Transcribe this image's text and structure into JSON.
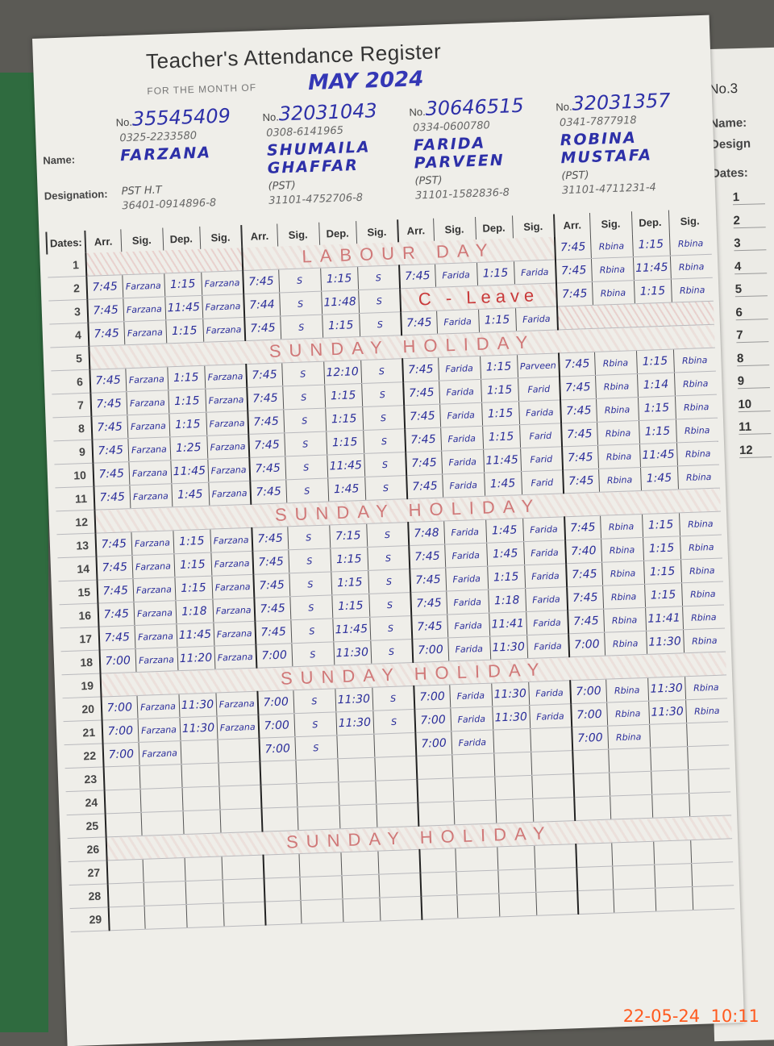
{
  "register": {
    "title": "Teacher's Attendance Register",
    "month_label": "FOR THE MONTH OF",
    "month_value": "MAY 2024",
    "labels": {
      "no": "No.",
      "name": "Name:",
      "designation": "Designation:",
      "dates": "Dates:"
    },
    "column_headers": [
      "Arr.",
      "Sig.",
      "Dep.",
      "Sig."
    ]
  },
  "teachers": [
    {
      "no": "35545409",
      "phone": "0325-2233580",
      "name": "FARZANA",
      "designation": "PST H.T",
      "cnic": "36401-0914896-8"
    },
    {
      "no": "32031043",
      "phone": "0308-6141965",
      "name": "SHUMAILA GHAFFAR",
      "designation": "(PST)",
      "cnic": "31101-4752706-8"
    },
    {
      "no": "30646515",
      "phone": "0334-0600780",
      "name": "FARIDA PARVEEN",
      "designation": "(PST)",
      "cnic": "31101-1582836-8"
    },
    {
      "no": "32031357",
      "phone": "0341-7877918",
      "name": "ROBINA MUSTAFA",
      "designation": "(PST)",
      "cnic": "31101-4711231-4"
    }
  ],
  "rows": [
    {
      "date": "1",
      "blocks": [
        {
          "note": ""
        },
        {
          "note": "LABOUR DAY"
        },
        {
          "note": "LABOUR DAY"
        },
        [
          "7:45",
          "Rbina",
          "1:15",
          "Rbina"
        ]
      ]
    },
    {
      "date": "2",
      "blocks": [
        [
          "7:45",
          "Farzana",
          "1:15",
          "Farzana"
        ],
        [
          "7:45",
          "S",
          "1:15",
          "S"
        ],
        [
          "7:45",
          "Farida",
          "1:15",
          "Farida"
        ],
        [
          "7:45",
          "Rbina",
          "11:45",
          "Rbina"
        ]
      ]
    },
    {
      "date": "3",
      "blocks": [
        [
          "7:45",
          "Farzana",
          "11:45",
          "Farzana"
        ],
        [
          "7:44",
          "S",
          "11:48",
          "S"
        ],
        {
          "note": "C - Leave"
        },
        [
          "7:45",
          "Rbina",
          "1:15",
          "Rbina"
        ]
      ]
    },
    {
      "date": "4",
      "blocks": [
        [
          "7:45",
          "Farzana",
          "1:15",
          "Farzana"
        ],
        [
          "7:45",
          "S",
          "1:15",
          "S"
        ],
        [
          "7:45",
          "Farida",
          "1:15",
          "Farida"
        ],
        {
          "note": ""
        }
      ]
    },
    {
      "date": "5",
      "holiday": "SUNDAY HOLIDAY"
    },
    {
      "date": "6",
      "blocks": [
        [
          "7:45",
          "Farzana",
          "1:15",
          "Farzana"
        ],
        [
          "7:45",
          "S",
          "12:10",
          "S"
        ],
        [
          "7:45",
          "Farida",
          "1:15",
          "Parveen"
        ],
        [
          "7:45",
          "Rbina",
          "1:15",
          "Rbina"
        ]
      ]
    },
    {
      "date": "7",
      "blocks": [
        [
          "7:45",
          "Farzana",
          "1:15",
          "Farzana"
        ],
        [
          "7:45",
          "S",
          "1:15",
          "S"
        ],
        [
          "7:45",
          "Farida",
          "1:15",
          "Farid"
        ],
        [
          "7:45",
          "Rbina",
          "1:14",
          "Rbina"
        ]
      ]
    },
    {
      "date": "8",
      "blocks": [
        [
          "7:45",
          "Farzana",
          "1:15",
          "Farzana"
        ],
        [
          "7:45",
          "S",
          "1:15",
          "S"
        ],
        [
          "7:45",
          "Farida",
          "1:15",
          "Farida"
        ],
        [
          "7:45",
          "Rbina",
          "1:15",
          "Rbina"
        ]
      ]
    },
    {
      "date": "9",
      "blocks": [
        [
          "7:45",
          "Farzana",
          "1:25",
          "Farzana"
        ],
        [
          "7:45",
          "S",
          "1:15",
          "S"
        ],
        [
          "7:45",
          "Farida",
          "1:15",
          "Farid"
        ],
        [
          "7:45",
          "Rbina",
          "1:15",
          "Rbina"
        ]
      ]
    },
    {
      "date": "10",
      "blocks": [
        [
          "7:45",
          "Farzana",
          "11:45",
          "Farzana"
        ],
        [
          "7:45",
          "S",
          "11:45",
          "S"
        ],
        [
          "7:45",
          "Farida",
          "11:45",
          "Farid"
        ],
        [
          "7:45",
          "Rbina",
          "11:45",
          "Rbina"
        ]
      ]
    },
    {
      "date": "11",
      "blocks": [
        [
          "7:45",
          "Farzana",
          "1:45",
          "Farzana"
        ],
        [
          "7:45",
          "S",
          "1:45",
          "S"
        ],
        [
          "7:45",
          "Farida",
          "1:45",
          "Farid"
        ],
        [
          "7:45",
          "Rbina",
          "1:45",
          "Rbina"
        ]
      ]
    },
    {
      "date": "12",
      "holiday": "SUNDAY HOLIDAY"
    },
    {
      "date": "13",
      "blocks": [
        [
          "7:45",
          "Farzana",
          "1:15",
          "Farzana"
        ],
        [
          "7:45",
          "S",
          "7:15",
          "S"
        ],
        [
          "7:48",
          "Farida",
          "1:45",
          "Farida"
        ],
        [
          "7:45",
          "Rbina",
          "1:15",
          "Rbina"
        ]
      ]
    },
    {
      "date": "14",
      "blocks": [
        [
          "7:45",
          "Farzana",
          "1:15",
          "Farzana"
        ],
        [
          "7:45",
          "S",
          "1:15",
          "S"
        ],
        [
          "7:45",
          "Farida",
          "1:45",
          "Farida"
        ],
        [
          "7:40",
          "Rbina",
          "1:15",
          "Rbina"
        ]
      ]
    },
    {
      "date": "15",
      "blocks": [
        [
          "7:45",
          "Farzana",
          "1:15",
          "Farzana"
        ],
        [
          "7:45",
          "S",
          "1:15",
          "S"
        ],
        [
          "7:45",
          "Farida",
          "1:15",
          "Farida"
        ],
        [
          "7:45",
          "Rbina",
          "1:15",
          "Rbina"
        ]
      ]
    },
    {
      "date": "16",
      "blocks": [
        [
          "7:45",
          "Farzana",
          "1:18",
          "Farzana"
        ],
        [
          "7:45",
          "S",
          "1:15",
          "S"
        ],
        [
          "7:45",
          "Farida",
          "1:18",
          "Farida"
        ],
        [
          "7:45",
          "Rbina",
          "1:15",
          "Rbina"
        ]
      ]
    },
    {
      "date": "17",
      "blocks": [
        [
          "7:45",
          "Farzana",
          "11:45",
          "Farzana"
        ],
        [
          "7:45",
          "S",
          "11:45",
          "S"
        ],
        [
          "7:45",
          "Farida",
          "11:41",
          "Farida"
        ],
        [
          "7:45",
          "Rbina",
          "11:41",
          "Rbina"
        ]
      ]
    },
    {
      "date": "18",
      "blocks": [
        [
          "7:00",
          "Farzana",
          "11:20",
          "Farzana"
        ],
        [
          "7:00",
          "S",
          "11:30",
          "S"
        ],
        [
          "7:00",
          "Farida",
          "11:30",
          "Farida"
        ],
        [
          "7:00",
          "Rbina",
          "11:30",
          "Rbina"
        ]
      ]
    },
    {
      "date": "19",
      "holiday": "SUNDAY HOLIDAY"
    },
    {
      "date": "20",
      "blocks": [
        [
          "7:00",
          "Farzana",
          "11:30",
          "Farzana"
        ],
        [
          "7:00",
          "S",
          "11:30",
          "S"
        ],
        [
          "7:00",
          "Farida",
          "11:30",
          "Farida"
        ],
        [
          "7:00",
          "Rbina",
          "11:30",
          "Rbina"
        ]
      ]
    },
    {
      "date": "21",
      "blocks": [
        [
          "7:00",
          "Farzana",
          "11:30",
          "Farzana"
        ],
        [
          "7:00",
          "S",
          "11:30",
          "S"
        ],
        [
          "7:00",
          "Farida",
          "11:30",
          "Farida"
        ],
        [
          "7:00",
          "Rbina",
          "11:30",
          "Rbina"
        ]
      ]
    },
    {
      "date": "22",
      "blocks": [
        [
          "7:00",
          "Farzana",
          "",
          ""
        ],
        [
          "7:00",
          "S",
          "",
          ""
        ],
        [
          "7:00",
          "Farida",
          "",
          ""
        ],
        [
          "7:00",
          "Rbina",
          "",
          ""
        ]
      ]
    },
    {
      "date": "23"
    },
    {
      "date": "24"
    },
    {
      "date": "25"
    },
    {
      "date": "26",
      "holiday": "SUNDAY HOLIDAY"
    },
    {
      "date": "27"
    },
    {
      "date": "28"
    },
    {
      "date": "29"
    }
  ],
  "next_page": {
    "no": "No.3",
    "name": "Name:",
    "designation": "Design",
    "dates": "Dates:",
    "rows": [
      "1",
      "2",
      "3",
      "4",
      "5",
      "6",
      "7",
      "8",
      "9",
      "10",
      "11",
      "12"
    ]
  },
  "timestamp": "22-05-24  10:11"
}
